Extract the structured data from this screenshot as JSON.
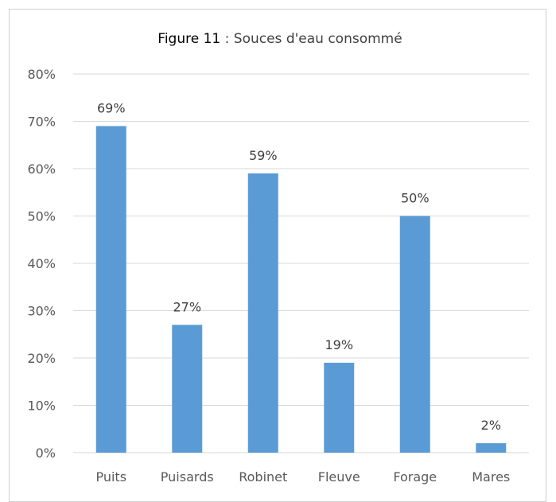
{
  "chart_data": {
    "type": "bar",
    "title_prefix": "Figure 11",
    "title": " : Souces d'eau consommé",
    "categories": [
      "Puits",
      "Puisards",
      "Robinet",
      "Fleuve",
      "Forage",
      "Mares"
    ],
    "values": [
      69,
      27,
      59,
      19,
      50,
      2
    ],
    "data_labels": [
      "69%",
      "27%",
      "59%",
      "19%",
      "50%",
      "2%"
    ],
    "yticks": [
      "0%",
      "10%",
      "20%",
      "30%",
      "40%",
      "50%",
      "60%",
      "70%",
      "80%"
    ],
    "ylim": [
      0,
      80
    ],
    "grid": true,
    "legend": "none",
    "bar_color": "#5b9bd5",
    "grid_color": "#d9d9d9"
  }
}
